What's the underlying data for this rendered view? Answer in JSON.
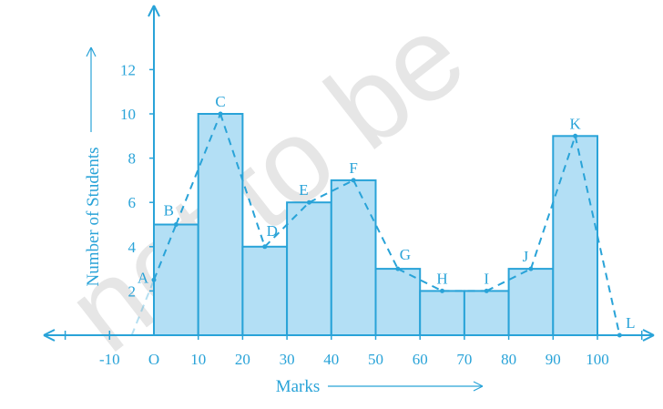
{
  "watermark": "not to be",
  "colors": {
    "axis": "#29a3d8",
    "bar_fill": "#b3dff5",
    "bar_stroke": "#29a3d8",
    "polygon": "#29a3d8",
    "text": "#29a3d8"
  },
  "chart_data": {
    "type": "bar",
    "subtype": "histogram-with-frequency-polygon",
    "xlabel": "Marks",
    "ylabel": "Number of Students",
    "x_ticks": [
      "-10",
      "O",
      "10",
      "20",
      "30",
      "40",
      "50",
      "60",
      "70",
      "80",
      "90",
      "100"
    ],
    "y_ticks": [
      "2",
      "4",
      "6",
      "8",
      "10",
      "12"
    ],
    "xlim": [
      -25,
      111
    ],
    "ylim": [
      0,
      14.5
    ],
    "bins": [
      {
        "from": 0,
        "to": 10,
        "value": 5
      },
      {
        "from": 10,
        "to": 20,
        "value": 10
      },
      {
        "from": 20,
        "to": 30,
        "value": 4
      },
      {
        "from": 30,
        "to": 40,
        "value": 6
      },
      {
        "from": 40,
        "to": 50,
        "value": 7
      },
      {
        "from": 50,
        "to": 60,
        "value": 3
      },
      {
        "from": 60,
        "to": 70,
        "value": 2
      },
      {
        "from": 70,
        "to": 80,
        "value": 2
      },
      {
        "from": 80,
        "to": 90,
        "value": 3
      },
      {
        "from": 90,
        "to": 100,
        "value": 9
      }
    ],
    "polygon_points": [
      {
        "label": "",
        "x": -5,
        "y": 0
      },
      {
        "label": "A",
        "x": 0,
        "y": 2.5
      },
      {
        "label": "B",
        "x": 5,
        "y": 5
      },
      {
        "label": "C",
        "x": 15,
        "y": 10
      },
      {
        "label": "D",
        "x": 25,
        "y": 4
      },
      {
        "label": "E",
        "x": 35,
        "y": 6
      },
      {
        "label": "F",
        "x": 45,
        "y": 7
      },
      {
        "label": "G",
        "x": 55,
        "y": 3
      },
      {
        "label": "H",
        "x": 65,
        "y": 2
      },
      {
        "label": "I",
        "x": 75,
        "y": 2
      },
      {
        "label": "J",
        "x": 85,
        "y": 3
      },
      {
        "label": "K",
        "x": 95,
        "y": 9
      },
      {
        "label": "L",
        "x": 105,
        "y": 0
      }
    ]
  }
}
